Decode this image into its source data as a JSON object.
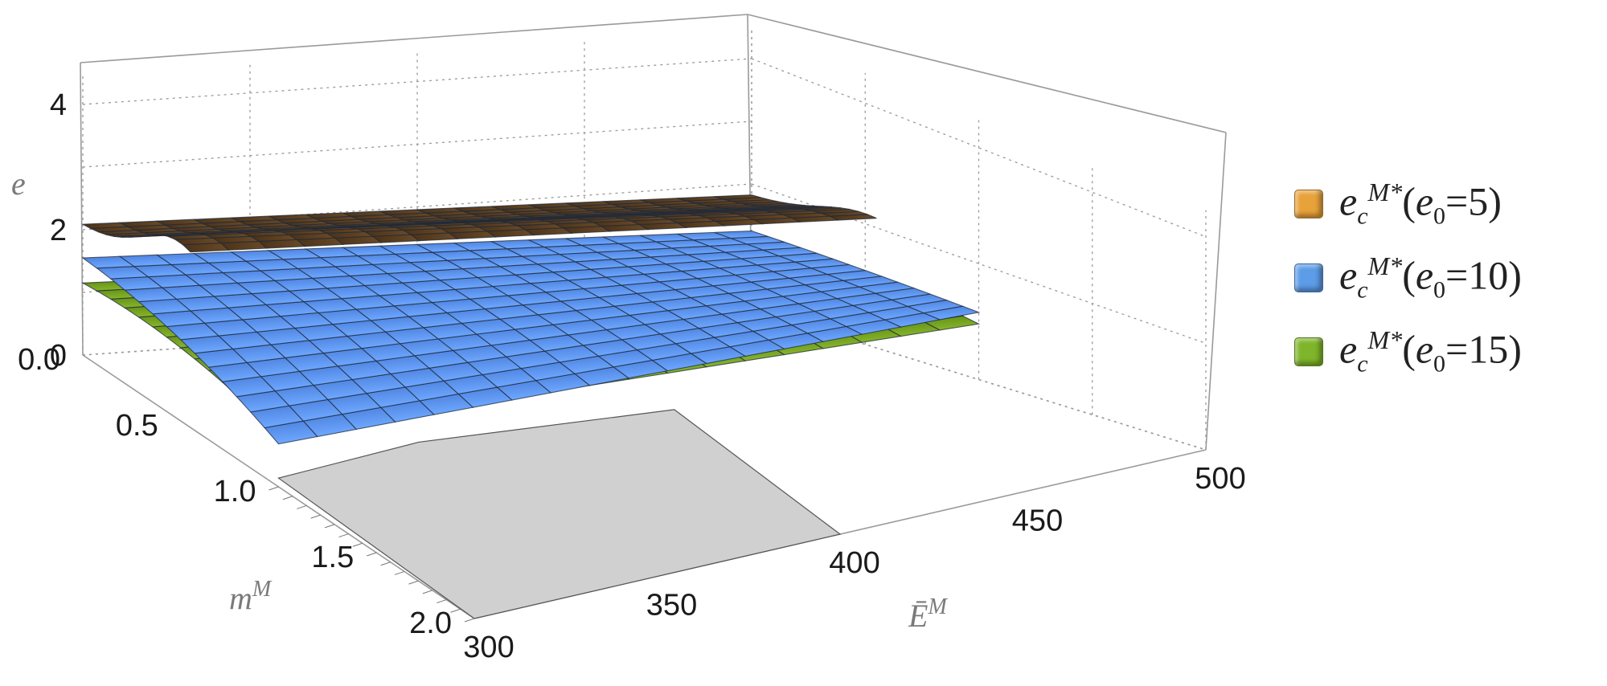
{
  "chart_data": {
    "type": "surface3d",
    "zlabel": "e",
    "ylabel": "m",
    "ylabel_sup": "M",
    "xlabel": "Ē",
    "xlabel_sup": "M",
    "x_ticks": [
      "300",
      "350",
      "400",
      "450",
      "500"
    ],
    "y_ticks": [
      "0.0",
      "0.5",
      "1.0",
      "1.5",
      "2.0"
    ],
    "z_ticks": [
      "0",
      "2",
      "4"
    ],
    "xlim": [
      300,
      500
    ],
    "ylim": [
      0,
      2
    ],
    "zlim": [
      0,
      4.5
    ],
    "grid": true,
    "legend_position": "right",
    "series": [
      {
        "name": "e_c^{M*}(e_0=5)",
        "legend_parts": {
          "base": "e",
          "sub": "c",
          "sup": "M*",
          "open": "(e",
          "param_sub": "0",
          "close": "=5)"
        },
        "color": "#5a3d1f",
        "swatch": "#e8a23a",
        "corner_values": {
          "E300_m0": 2.0,
          "E500_m0": 1.7,
          "E300_m0.55": 2.6,
          "E500_m0.55": 1.3
        }
      },
      {
        "name": "e_c^{M*}(e_0=10)",
        "legend_parts": {
          "base": "e",
          "sub": "c",
          "sup": "M*",
          "open": "(e",
          "param_sub": "0",
          "close": "=10)"
        },
        "color": "#4f86e8",
        "swatch": "#5d9ce8",
        "corner_values": {
          "E300_m0": 1.6,
          "E500_m0": 1.3,
          "E300_m1": 0.4,
          "E500_m1": 0.9
        }
      },
      {
        "name": "e_c^{M*}(e_0=15)",
        "legend_parts": {
          "base": "e",
          "sub": "c",
          "sup": "M*",
          "open": "(e",
          "param_sub": "0",
          "close": "=15)"
        },
        "color": "#6f9a1a",
        "swatch": "#7fb52a",
        "corner_values": {
          "E300_m0": 1.2,
          "E500_m0": 0.9,
          "E300_m1": 0.5,
          "E500_m1": 0.5
        }
      }
    ]
  }
}
